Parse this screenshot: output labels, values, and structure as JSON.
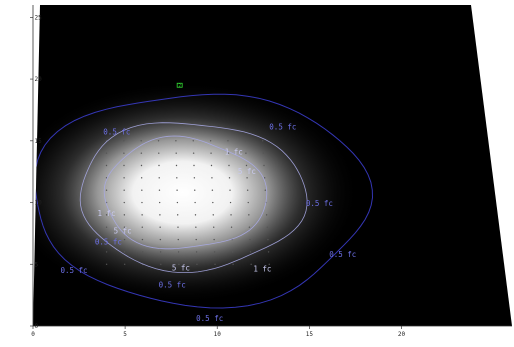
{
  "chart_data": {
    "type": "heatmap",
    "title": "",
    "xlabel": "",
    "ylabel": "",
    "xlim": [
      0,
      26
    ],
    "ylim": [
      0,
      26
    ],
    "x_ticks": [
      0,
      5,
      10,
      15,
      20
    ],
    "y_ticks": [
      0,
      5,
      10,
      15,
      20,
      25
    ],
    "x_tick_labels": [
      "0",
      "5",
      "10",
      "15",
      "20"
    ],
    "y_tick_labels": [
      "0",
      "5",
      "10",
      "15",
      "20",
      "25"
    ],
    "grid": false,
    "legend": "none",
    "colors": {
      "background": "#000000",
      "peak": "#ffffff",
      "contour_outer": "#3a3cc8",
      "contour_inner": "#a9aae6",
      "marker": "#33dd33",
      "grid_point": "#555555"
    },
    "illuminance_peak": {
      "x": 8.3,
      "y": 10.8
    },
    "fixture_marker": {
      "x": 8.3,
      "y": 19.5,
      "label": "2"
    },
    "measurement_grid": {
      "x_start": 4,
      "x_end": 13,
      "y_start": 5,
      "y_end": 15,
      "step": 1
    },
    "contours": [
      {
        "label": "0.5 fc",
        "value": 0.5,
        "cx": 9.3,
        "cy": 10.4,
        "rx": 9.5,
        "ry": 8.6
      },
      {
        "label": "1 fc",
        "value": 1,
        "cx": 8.8,
        "cy": 10.6,
        "rx": 6.4,
        "ry": 6.0
      },
      {
        "label": "5 fc",
        "value": 5,
        "cx": 8.4,
        "cy": 10.7,
        "rx": 4.6,
        "ry": 4.5
      }
    ],
    "contour_labels": [
      {
        "text": "0.5 fc",
        "x": 4.6,
        "y": 15.5,
        "level": "0.5 fc"
      },
      {
        "text": "0.5 fc",
        "x": 14.2,
        "y": 15.9,
        "level": "0.5 fc"
      },
      {
        "text": "0.5 fc",
        "x": 16.0,
        "y": 9.7,
        "level": "0.5 fc"
      },
      {
        "text": "0.5 fc",
        "x": 17.1,
        "y": 5.6,
        "level": "0.5 fc"
      },
      {
        "text": "0.5 fc",
        "x": 2.2,
        "y": 4.3,
        "level": "0.5 fc"
      },
      {
        "text": "0.5 fc",
        "x": 4.1,
        "y": 6.6,
        "level": "0.5 fc"
      },
      {
        "text": "0.5 fc",
        "x": 7.6,
        "y": 3.1,
        "level": "0.5 fc"
      },
      {
        "text": "0.5 fc",
        "x": 9.6,
        "y": 0.4,
        "level": "0.5 fc"
      },
      {
        "text": "1 fc",
        "x": 11.3,
        "y": 13.9,
        "level": "1 fc"
      },
      {
        "text": "1 fc",
        "x": 4.0,
        "y": 8.9,
        "level": "1 fc"
      },
      {
        "text": "1 fc",
        "x": 12.6,
        "y": 4.4,
        "level": "1 fc"
      },
      {
        "text": "5 fc",
        "x": 12.0,
        "y": 12.3,
        "level": "5 fc"
      },
      {
        "text": "5 fc",
        "x": 4.9,
        "y": 7.5,
        "level": "5 fc"
      },
      {
        "text": "5 fc",
        "x": 8.1,
        "y": 4.5,
        "level": "5 fc"
      }
    ]
  }
}
